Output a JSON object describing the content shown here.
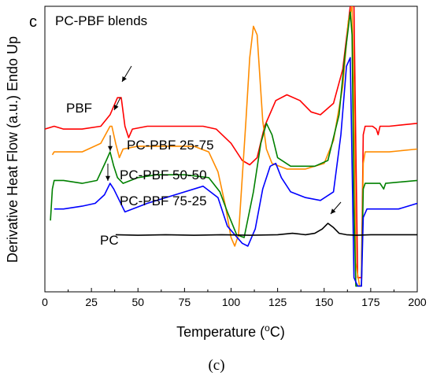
{
  "panel_letter": "c",
  "caption": "(c)",
  "chart_data": {
    "type": "line",
    "title": "PC-PBF blends",
    "xlabel_pre": "Temperature (",
    "xlabel_sup": "o",
    "xlabel_post": "C)",
    "ylabel": "Derivative Heat Flow (a.u.) Endo Up",
    "xlim": [
      0,
      200
    ],
    "ylim": [
      0,
      1
    ],
    "xticks": [
      0,
      25,
      50,
      75,
      100,
      125,
      150,
      175,
      200
    ],
    "yticks_shown": false,
    "grid": false,
    "colors": {
      "PBF": "#ff0000",
      "PC-PBF 25-75": "#ff8c00",
      "PC-PBF 50-50": "#008000",
      "PC-PBF 75-25": "#0000ff",
      "PC": "#000000"
    },
    "series": [
      {
        "name": "PBF",
        "color": "#ff0000",
        "points": [
          [
            0,
            0.57
          ],
          [
            5,
            0.58
          ],
          [
            10,
            0.57
          ],
          [
            20,
            0.57
          ],
          [
            30,
            0.58
          ],
          [
            35,
            0.62
          ],
          [
            39,
            0.68
          ],
          [
            41,
            0.68
          ],
          [
            43,
            0.58
          ],
          [
            45,
            0.54
          ],
          [
            47,
            0.57
          ],
          [
            55,
            0.58
          ],
          [
            70,
            0.58
          ],
          [
            85,
            0.58
          ],
          [
            92,
            0.57
          ],
          [
            100,
            0.52
          ],
          [
            106,
            0.46
          ],
          [
            110,
            0.445
          ],
          [
            114,
            0.47
          ],
          [
            118,
            0.58
          ],
          [
            124,
            0.67
          ],
          [
            130,
            0.69
          ],
          [
            137,
            0.67
          ],
          [
            143,
            0.63
          ],
          [
            148,
            0.62
          ],
          [
            155,
            0.66
          ],
          [
            160,
            0.78
          ],
          [
            164,
            1.0
          ],
          [
            166,
            1.0
          ],
          [
            167,
            0.5
          ],
          [
            168,
            0.05
          ],
          [
            170,
            0.05
          ],
          [
            171,
            0.55
          ],
          [
            172,
            0.58
          ],
          [
            176,
            0.58
          ],
          [
            178,
            0.57
          ],
          [
            179,
            0.55
          ],
          [
            180,
            0.58
          ],
          [
            185,
            0.58
          ],
          [
            200,
            0.59
          ]
        ]
      },
      {
        "name": "PC-PBF 25-75",
        "color": "#ff8c00",
        "points": [
          [
            4,
            0.48
          ],
          [
            5,
            0.49
          ],
          [
            20,
            0.49
          ],
          [
            30,
            0.52
          ],
          [
            35,
            0.58
          ],
          [
            36,
            0.58
          ],
          [
            38,
            0.52
          ],
          [
            40,
            0.47
          ],
          [
            42,
            0.5
          ],
          [
            50,
            0.51
          ],
          [
            65,
            0.51
          ],
          [
            80,
            0.51
          ],
          [
            88,
            0.49
          ],
          [
            93,
            0.42
          ],
          [
            97,
            0.3
          ],
          [
            100,
            0.19
          ],
          [
            102,
            0.16
          ],
          [
            104,
            0.2
          ],
          [
            108,
            0.6
          ],
          [
            110,
            0.82
          ],
          [
            112,
            0.93
          ],
          [
            114,
            0.9
          ],
          [
            117,
            0.6
          ],
          [
            119,
            0.5
          ],
          [
            122,
            0.45
          ],
          [
            130,
            0.43
          ],
          [
            140,
            0.43
          ],
          [
            150,
            0.45
          ],
          [
            155,
            0.53
          ],
          [
            160,
            0.72
          ],
          [
            163,
            0.95
          ],
          [
            165,
            1.0
          ],
          [
            166,
            0.7
          ],
          [
            167,
            0.1
          ],
          [
            169,
            0.02
          ],
          [
            170,
            0.02
          ],
          [
            171,
            0.45
          ],
          [
            172,
            0.49
          ],
          [
            185,
            0.49
          ],
          [
            200,
            0.5
          ]
        ]
      },
      {
        "name": "PC-PBF 50-50",
        "color": "#008000",
        "points": [
          [
            3,
            0.25
          ],
          [
            4,
            0.36
          ],
          [
            5,
            0.39
          ],
          [
            10,
            0.39
          ],
          [
            20,
            0.38
          ],
          [
            28,
            0.39
          ],
          [
            33,
            0.46
          ],
          [
            35,
            0.49
          ],
          [
            37,
            0.44
          ],
          [
            39,
            0.4
          ],
          [
            42,
            0.38
          ],
          [
            50,
            0.4
          ],
          [
            60,
            0.41
          ],
          [
            75,
            0.41
          ],
          [
            88,
            0.4
          ],
          [
            94,
            0.35
          ],
          [
            98,
            0.28
          ],
          [
            103,
            0.2
          ],
          [
            107,
            0.19
          ],
          [
            112,
            0.35
          ],
          [
            116,
            0.52
          ],
          [
            119,
            0.59
          ],
          [
            122,
            0.55
          ],
          [
            125,
            0.47
          ],
          [
            132,
            0.44
          ],
          [
            145,
            0.44
          ],
          [
            152,
            0.46
          ],
          [
            158,
            0.62
          ],
          [
            161,
            0.82
          ],
          [
            164,
            0.98
          ],
          [
            165,
            0.9
          ],
          [
            166,
            0.3
          ],
          [
            167,
            0.02
          ],
          [
            170,
            0.02
          ],
          [
            171,
            0.36
          ],
          [
            172,
            0.38
          ],
          [
            180,
            0.38
          ],
          [
            182,
            0.36
          ],
          [
            183,
            0.38
          ],
          [
            200,
            0.39
          ]
        ]
      },
      {
        "name": "PC-PBF 75-25",
        "color": "#0000ff",
        "points": [
          [
            5,
            0.29
          ],
          [
            10,
            0.29
          ],
          [
            20,
            0.3
          ],
          [
            27,
            0.31
          ],
          [
            32,
            0.34
          ],
          [
            35,
            0.38
          ],
          [
            37,
            0.36
          ],
          [
            40,
            0.32
          ],
          [
            43,
            0.28
          ],
          [
            47,
            0.29
          ],
          [
            55,
            0.31
          ],
          [
            70,
            0.34
          ],
          [
            85,
            0.37
          ],
          [
            93,
            0.33
          ],
          [
            98,
            0.23
          ],
          [
            102,
            0.2
          ],
          [
            106,
            0.17
          ],
          [
            109,
            0.16
          ],
          [
            113,
            0.22
          ],
          [
            117,
            0.36
          ],
          [
            121,
            0.44
          ],
          [
            124,
            0.45
          ],
          [
            127,
            0.4
          ],
          [
            132,
            0.35
          ],
          [
            140,
            0.33
          ],
          [
            148,
            0.32
          ],
          [
            155,
            0.35
          ],
          [
            159,
            0.55
          ],
          [
            162,
            0.79
          ],
          [
            164,
            0.82
          ],
          [
            165,
            0.45
          ],
          [
            166,
            0.05
          ],
          [
            168,
            0.02
          ],
          [
            170,
            0.02
          ],
          [
            171,
            0.26
          ],
          [
            173,
            0.29
          ],
          [
            190,
            0.29
          ],
          [
            200,
            0.31
          ]
        ]
      },
      {
        "name": "PC",
        "color": "#000000",
        "points": [
          [
            38,
            0.2
          ],
          [
            50,
            0.198
          ],
          [
            65,
            0.2
          ],
          [
            80,
            0.198
          ],
          [
            95,
            0.2
          ],
          [
            110,
            0.198
          ],
          [
            125,
            0.2
          ],
          [
            133,
            0.205
          ],
          [
            140,
            0.2
          ],
          [
            145,
            0.205
          ],
          [
            149,
            0.22
          ],
          [
            152,
            0.24
          ],
          [
            155,
            0.225
          ],
          [
            158,
            0.205
          ],
          [
            162,
            0.2
          ],
          [
            167,
            0.198
          ],
          [
            175,
            0.2
          ],
          [
            190,
            0.2
          ],
          [
            200,
            0.2
          ]
        ]
      }
    ],
    "annotations": [
      {
        "text": "PBF",
        "for": "PBF"
      },
      {
        "text": "PC-PBF 25-75",
        "for": "PC-PBF 25-75"
      },
      {
        "text": "PC-PBF 50-50",
        "for": "PC-PBF 50-50"
      },
      {
        "text": "PC-PBF 75-25",
        "for": "PC-PBF 75-25"
      },
      {
        "text": "PC",
        "for": "PC"
      }
    ]
  }
}
